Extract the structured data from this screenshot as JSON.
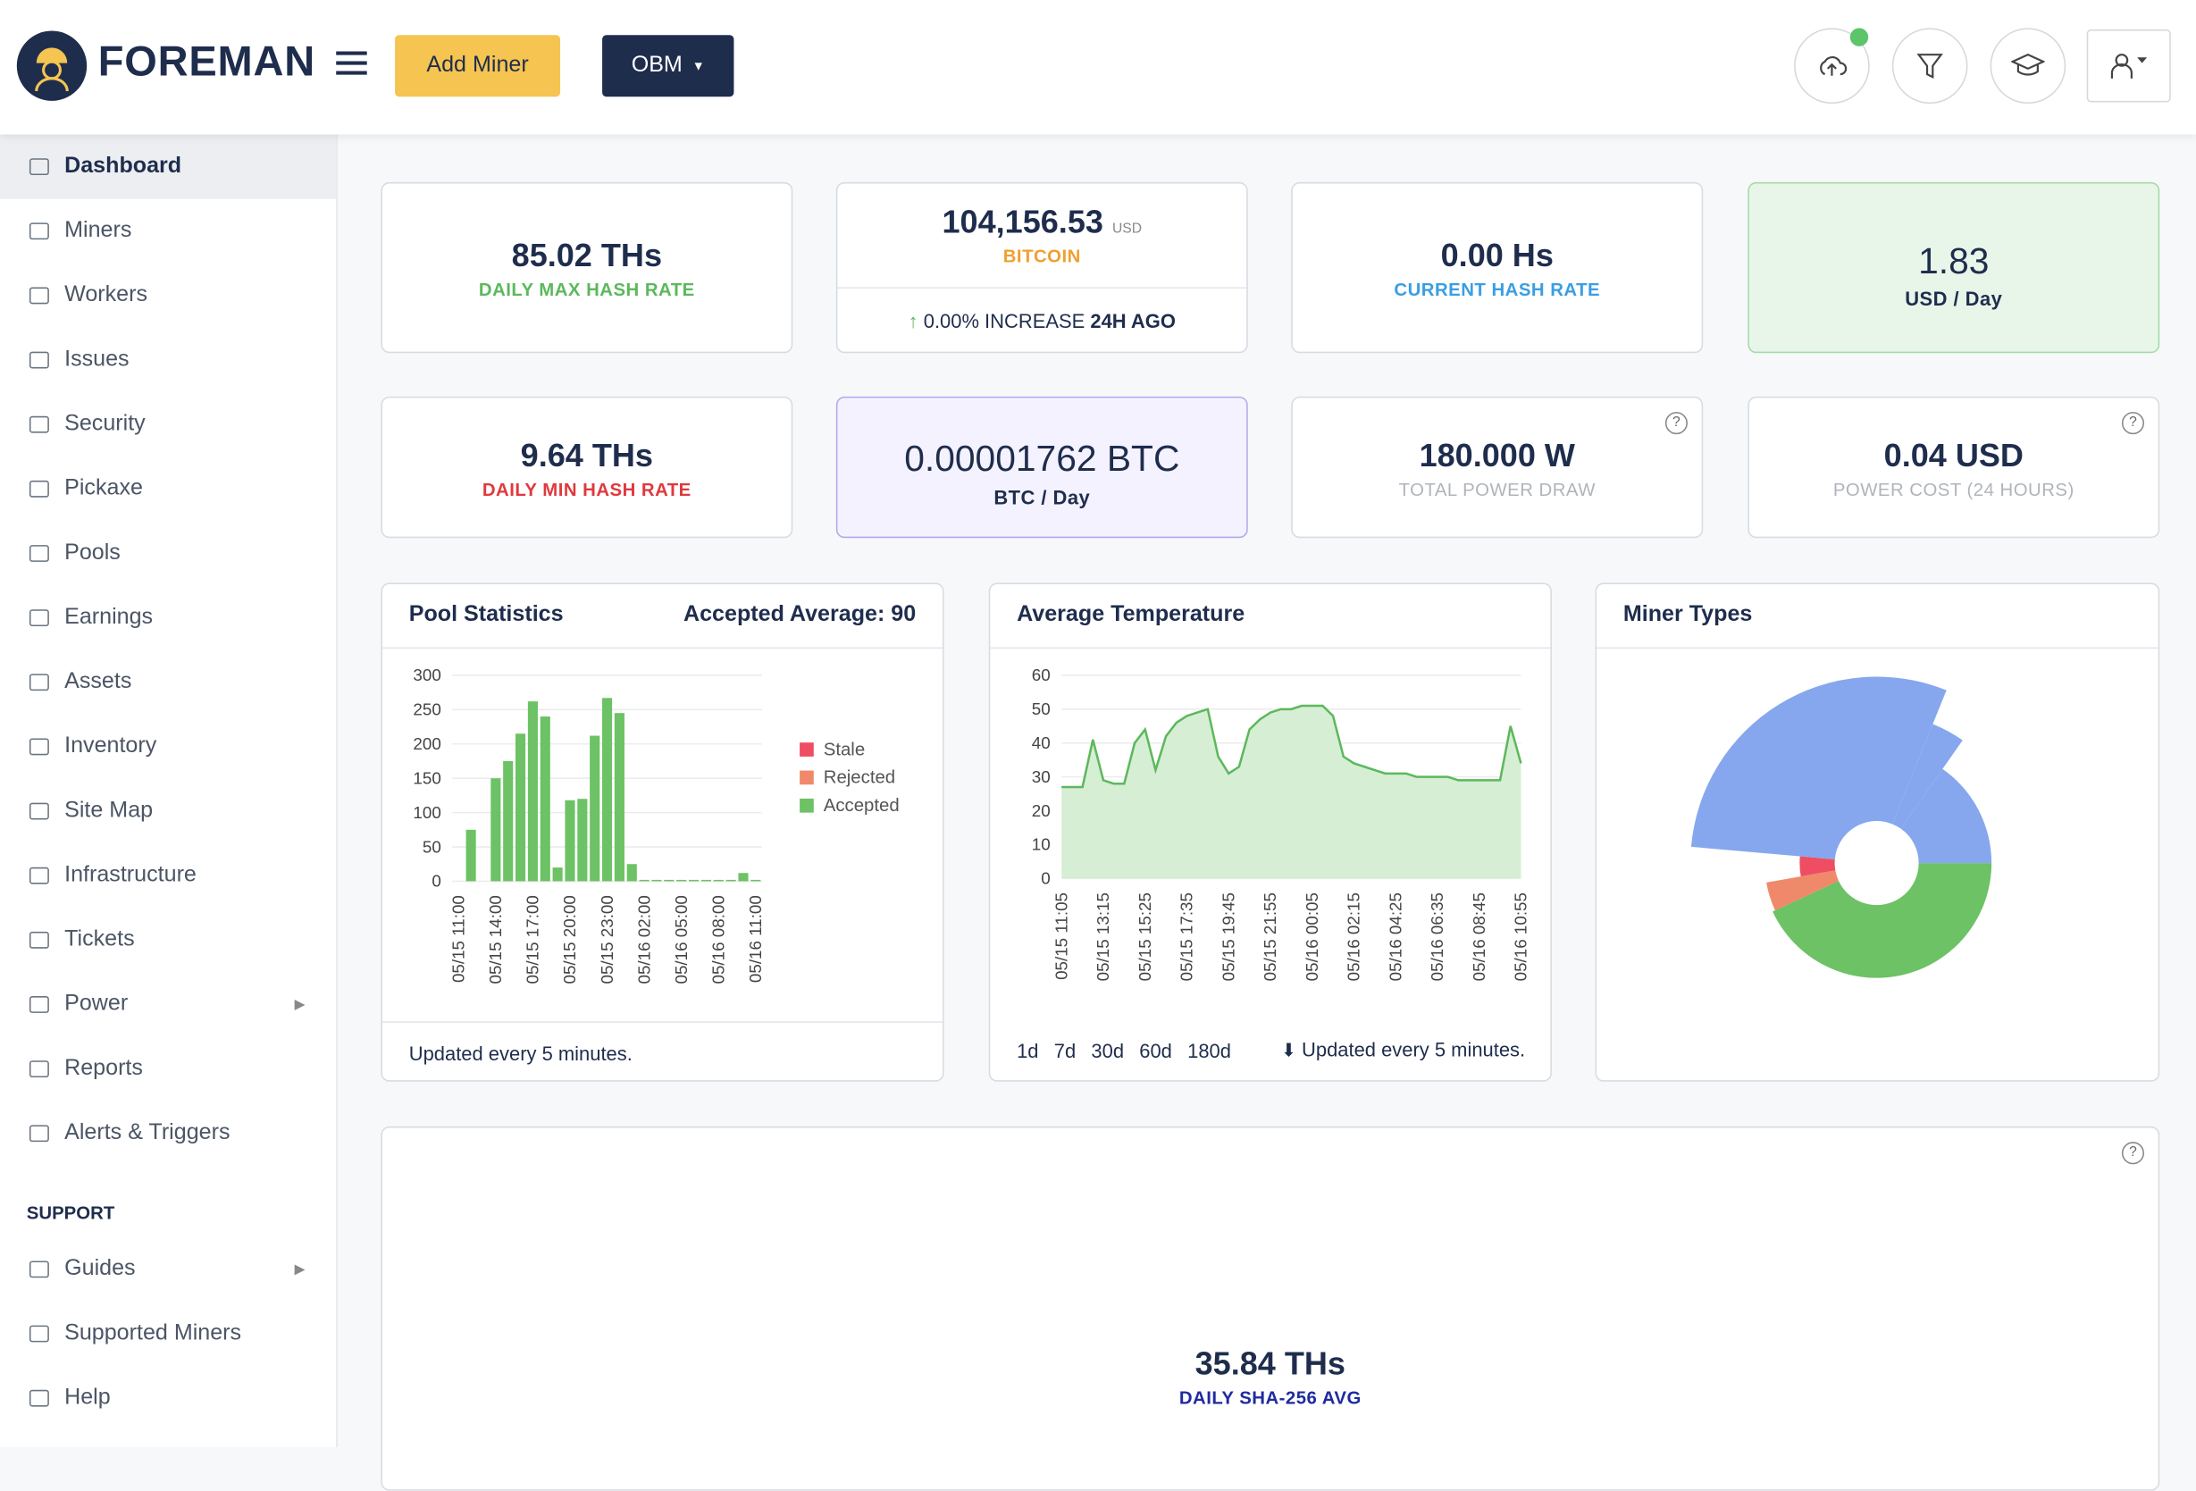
{
  "header": {
    "brand": "FOREMAN",
    "add_miner": "Add Miner",
    "org": "OBM"
  },
  "sidebar": {
    "items": [
      "Dashboard",
      "Miners",
      "Workers",
      "Issues",
      "Security",
      "Pickaxe",
      "Pools",
      "Earnings",
      "Assets",
      "Inventory",
      "Site Map",
      "Infrastructure",
      "Tickets",
      "Power",
      "Reports",
      "Alerts & Triggers"
    ],
    "support_title": "SUPPORT",
    "support_items": [
      "Guides",
      "Supported Miners",
      "Help"
    ]
  },
  "cards": [
    {
      "value": "85.02 THs",
      "label": "DAILY MAX HASH RATE"
    },
    {
      "value": "104,156.53",
      "unit": "USD",
      "label": "BITCOIN",
      "change": "0.00% INCREASE",
      "change_period": "24H AGO"
    },
    {
      "value": "0.00 Hs",
      "label": "CURRENT HASH RATE"
    },
    {
      "value": "1.83",
      "label": "USD / Day"
    },
    {
      "value": "9.64 THs",
      "label": "DAILY MIN HASH RATE"
    },
    {
      "value": "0.00001762 BTC",
      "label": "BTC / Day"
    },
    {
      "value": "180.000 W",
      "label": "TOTAL POWER DRAW"
    },
    {
      "value": "0.04 USD",
      "label": "POWER COST (24 HOURS)"
    }
  ],
  "summary": {
    "value": "35.84 THs",
    "label": "DAILY SHA-256 AVG"
  },
  "chart_data": [
    {
      "type": "bar",
      "stacked": true,
      "title": "Pool Statistics",
      "annotation": "Accepted Average: 90",
      "footer": "Updated every 5 minutes.",
      "categories": [
        "05/15 11:00",
        null,
        null,
        "05/15 14:00",
        null,
        null,
        "05/15 17:00",
        null,
        null,
        "05/15 20:00",
        null,
        null,
        "05/15 23:00",
        null,
        null,
        "05/16 02:00",
        null,
        null,
        "05/16 05:00",
        null,
        null,
        "05/16 08:00",
        null,
        null,
        "05/16 11:00"
      ],
      "series": [
        {
          "name": "Accepted",
          "color": "#6cc264",
          "values": [
            0,
            75,
            0,
            150,
            175,
            215,
            262,
            240,
            20,
            118,
            120,
            212,
            267,
            245,
            25,
            2,
            2,
            2,
            2,
            2,
            2,
            2,
            2,
            12,
            2
          ]
        },
        {
          "name": "Rejected",
          "color": "#f0896a",
          "values": [
            0,
            0,
            0,
            0,
            0,
            0,
            0,
            0,
            0,
            0,
            0,
            0,
            0,
            0,
            0,
            0,
            0,
            0,
            0,
            0,
            0,
            0,
            0,
            0,
            0
          ]
        },
        {
          "name": "Stale",
          "color": "#ee4d62",
          "values": [
            0,
            0,
            0,
            0,
            0,
            0,
            0,
            0,
            0,
            0,
            0,
            0,
            0,
            0,
            0,
            0,
            0,
            0,
            0,
            0,
            0,
            0,
            0,
            0,
            0
          ]
        }
      ],
      "legend_order": [
        2,
        1,
        0
      ],
      "ylim": [
        0,
        300
      ],
      "yticks": [
        0,
        50,
        100,
        150,
        200,
        250,
        300
      ],
      "grid": true
    },
    {
      "type": "area",
      "title": "Average Temperature",
      "ranges": [
        "1d",
        "7d",
        "30d",
        "60d",
        "180d"
      ],
      "footer": "Updated every 5 minutes.",
      "categories": [
        "05/15 11:05",
        null,
        null,
        null,
        "05/15 13:15",
        null,
        null,
        null,
        "05/15 15:25",
        null,
        null,
        null,
        "05/15 17:35",
        null,
        null,
        null,
        "05/15 19:45",
        null,
        null,
        null,
        "05/15 21:55",
        null,
        null,
        null,
        "05/16 00:05",
        null,
        null,
        null,
        "05/16 02:15",
        null,
        null,
        null,
        "05/16 04:25",
        null,
        null,
        null,
        "05/16 06:35",
        null,
        null,
        null,
        "05/16 08:45",
        null,
        null,
        null,
        "05/16 10:55"
      ],
      "color": "#5cb85c",
      "fill": "#d6eed3",
      "values": [
        27,
        27,
        27,
        41,
        29,
        28,
        28,
        40,
        44,
        32,
        42,
        46,
        48,
        49,
        50,
        36,
        31,
        33,
        44,
        47,
        49,
        50,
        50,
        51,
        51,
        51,
        48,
        36,
        34,
        33,
        32,
        31,
        31,
        31,
        30,
        30,
        30,
        30,
        29,
        29,
        29,
        29,
        29,
        45,
        34
      ],
      "ylim": [
        0,
        60
      ],
      "yticks": [
        0,
        10,
        20,
        30,
        40,
        50,
        60
      ],
      "grid": true
    },
    {
      "type": "polar",
      "title": "Miner Types",
      "values": [
        155,
        15,
        15,
        107,
        13,
        55
      ],
      "radii": [
        82,
        80,
        55,
        133,
        107,
        82
      ],
      "colors": [
        "#6cc264",
        "#f0896a",
        "#ee4d62",
        "#86a7ee",
        "#86a7ee",
        "#86a7ee"
      ]
    }
  ]
}
